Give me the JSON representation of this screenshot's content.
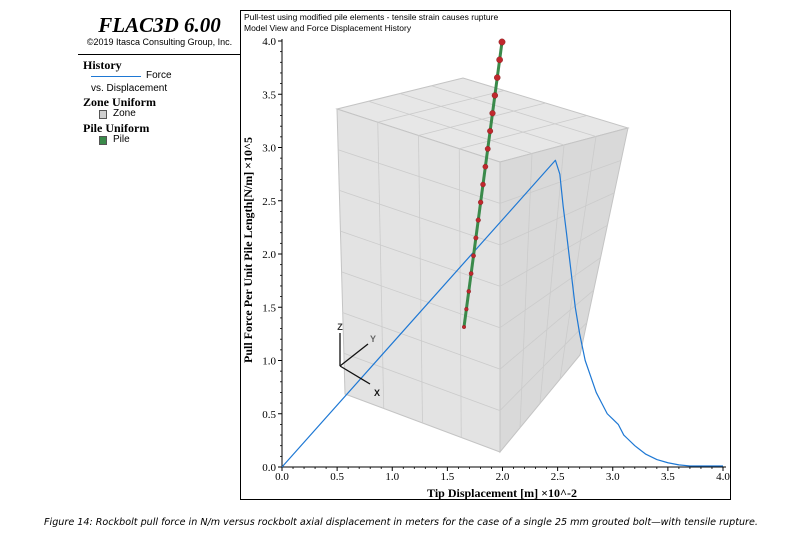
{
  "brand": {
    "title": "FLAC3D 6.00",
    "copyright": "©2019 Itasca Consulting Group, Inc."
  },
  "legend": {
    "history_heading": "History",
    "history_line1": "Force",
    "history_line2": "vs. Displacement",
    "zone_heading": "Zone Uniform",
    "zone_item": "Zone",
    "pile_heading": "Pile Uniform",
    "pile_item": "Pile",
    "colors": {
      "history": "#1e78d4",
      "zone": "#cfcfcf",
      "pile": "#3a8a4a"
    }
  },
  "plot_header": {
    "line1": "Pull-test using modified pile elements - tensile strain causes rupture",
    "line2": "Model View and Force Displacement History"
  },
  "triad": {
    "z": "Z",
    "y": "Y",
    "x": "X"
  },
  "caption": "Figure 14: Rockbolt pull force in N/m versus rockbolt axial displacement in meters for the case of a single 25 mm grouted bolt—with tensile rupture.",
  "chart_data": {
    "type": "line",
    "xlabel": "Tip Displacement [m] ×10^-2",
    "ylabel": "Pull Force Per Unit Pile Length[N/m] ×10^5",
    "xlim": [
      0,
      4.0
    ],
    "ylim": [
      0,
      4.0
    ],
    "x_ticks": [
      "0.0",
      "0.5",
      "1.0",
      "1.5",
      "2.0",
      "2.5",
      "3.0",
      "3.5",
      "4.0"
    ],
    "y_ticks": [
      "0.0",
      "0.5",
      "1.0",
      "1.5",
      "2.0",
      "2.5",
      "3.0",
      "3.5",
      "4.0"
    ],
    "grid": false,
    "series": [
      {
        "color": "#1e78d4",
        "x": [
          0.0,
          2.48,
          2.52,
          2.55,
          2.58,
          2.62,
          2.66,
          2.7,
          2.75,
          2.8,
          2.85,
          2.9,
          2.95,
          3.0,
          3.05,
          3.1,
          3.13,
          3.2,
          3.3,
          3.4,
          3.5,
          3.6,
          3.7,
          3.8,
          3.9,
          4.0
        ],
        "y": [
          0.0,
          2.88,
          2.75,
          2.45,
          2.2,
          1.85,
          1.5,
          1.25,
          1.0,
          0.85,
          0.7,
          0.6,
          0.5,
          0.45,
          0.4,
          0.3,
          0.27,
          0.2,
          0.12,
          0.07,
          0.04,
          0.02,
          0.01,
          0.01,
          0.01,
          0.01
        ]
      }
    ]
  }
}
